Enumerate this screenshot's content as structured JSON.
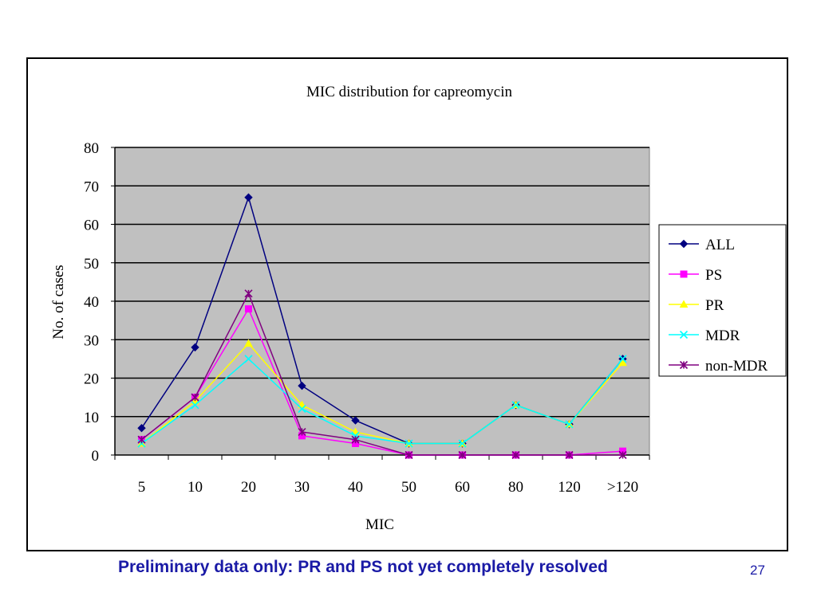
{
  "chart_data": {
    "type": "line",
    "title": "MIC distribution for capreomycin",
    "xlabel": "MIC",
    "ylabel": "No. of cases",
    "categories": [
      "5",
      "10",
      "20",
      "30",
      "40",
      "50",
      "60",
      "80",
      "120",
      ">120"
    ],
    "ylim": [
      0,
      80
    ],
    "yticks": [
      0,
      10,
      20,
      30,
      40,
      50,
      60,
      70,
      80
    ],
    "grid": true,
    "legend": "right",
    "plot_background": "#c0c0c0",
    "series": [
      {
        "name": "ALL",
        "color": "#000080",
        "marker": "diamond",
        "values": [
          7,
          28,
          67,
          18,
          9,
          3,
          3,
          13,
          8,
          25
        ]
      },
      {
        "name": "PS",
        "color": "#ff00ff",
        "marker": "square",
        "values": [
          4,
          15,
          38,
          5,
          3,
          0,
          0,
          0,
          0,
          1
        ]
      },
      {
        "name": "PR",
        "color": "#ffff00",
        "marker": "triangle",
        "values": [
          3,
          14,
          29,
          13,
          6,
          3,
          3,
          13,
          8,
          24
        ]
      },
      {
        "name": "MDR",
        "color": "#00ffff",
        "marker": "x",
        "values": [
          3,
          13,
          25,
          12,
          5,
          3,
          3,
          13,
          8,
          25
        ]
      },
      {
        "name": "non-MDR",
        "color": "#800080",
        "marker": "star",
        "values": [
          4,
          15,
          42,
          6,
          4,
          0,
          0,
          0,
          0,
          0
        ]
      }
    ]
  },
  "footer": {
    "note": "Preliminary data only: PR and PS not yet completely resolved",
    "page_number": "27"
  }
}
